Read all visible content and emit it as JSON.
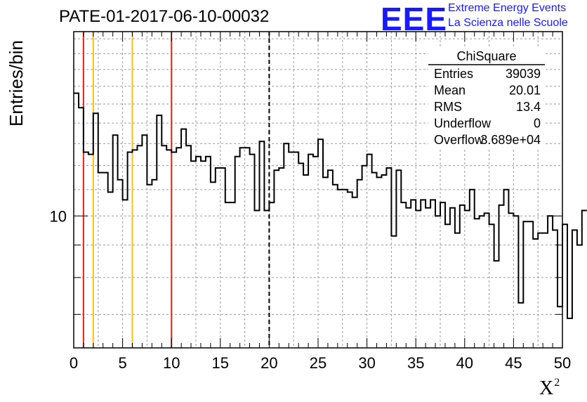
{
  "header": {
    "title": "PATE-01-2017-06-10-00032",
    "logo": {
      "letters": "EEE",
      "line1": "Extreme Energy Events",
      "line2": "La Scienza nelle Scuole",
      "color": "#1a1aff"
    }
  },
  "stats_box": {
    "title": "ChiSquare",
    "rows": [
      {
        "label": "Entries",
        "value": "39039"
      },
      {
        "label": "Mean",
        "value": "20.01"
      },
      {
        "label": "RMS",
        "value": "13.4"
      },
      {
        "label": "Underflow",
        "value": "0"
      },
      {
        "label": "Overflow",
        "value": "3.689e+04"
      }
    ]
  },
  "chart_data": {
    "type": "histogram",
    "xlabel": "X",
    "xlabel_superscript": "2",
    "ylabel": "Entries/bin",
    "xlim": [
      0,
      50
    ],
    "ylim": [
      6.2,
      19.5
    ],
    "y_scale": "log",
    "grid": true,
    "bin_width": 0.5,
    "x_ticks": [
      "0",
      "5",
      "10",
      "15",
      "20",
      "25",
      "30",
      "35",
      "40",
      "45",
      "50"
    ],
    "y_tick_labels": [
      "10"
    ],
    "bin_values": [
      15.6,
      14.8,
      12.6,
      12.5,
      14.5,
      11.7,
      11.7,
      10.9,
      13.4,
      11.4,
      10.6,
      12.6,
      12.7,
      12.9,
      13.4,
      11.2,
      11.4,
      14.4,
      12.9,
      12.7,
      12.6,
      12.8,
      13.7,
      12.9,
      12.2,
      12.4,
      12.2,
      12.4,
      11.3,
      11.9,
      11.9,
      10.5,
      10.5,
      12.4,
      12.8,
      12.8,
      12.5,
      10.2,
      13.1,
      10.2,
      10.5,
      11.8,
      11.9,
      13.0,
      12.6,
      12.6,
      12.1,
      11.6,
      12.5,
      12.4,
      13.2,
      11.5,
      11.8,
      11.2,
      11.0,
      11.0,
      10.9,
      10.7,
      11.4,
      12.0,
      12.5,
      11.7,
      11.5,
      11.6,
      11.9,
      9.3,
      11.8,
      10.5,
      10.3,
      10.6,
      10.2,
      10.6,
      10.3,
      10.6,
      10.0,
      10.5,
      9.7,
      10.3,
      9.4,
      10.4,
      10.2,
      11.0,
      9.9,
      10.0,
      10.1,
      9.7,
      8.5,
      10.4,
      11.0,
      10.1,
      10.0,
      7.3,
      9.8,
      9.8,
      9.2,
      9.4,
      9.4,
      10.0,
      9.5,
      7.2,
      9.7,
      6.9,
      9.5,
      9.0,
      10.2
    ],
    "reference_lines": [
      {
        "x": 1,
        "color": "#e8261c",
        "style": "solid"
      },
      {
        "x": 2,
        "color": "#f2c315",
        "style": "solid"
      },
      {
        "x": 6,
        "color": "#f2c315",
        "style": "solid"
      },
      {
        "x": 10,
        "color": "#e8261c",
        "style": "solid"
      },
      {
        "x": 20,
        "color": "#000000",
        "style": "dashed"
      }
    ]
  }
}
